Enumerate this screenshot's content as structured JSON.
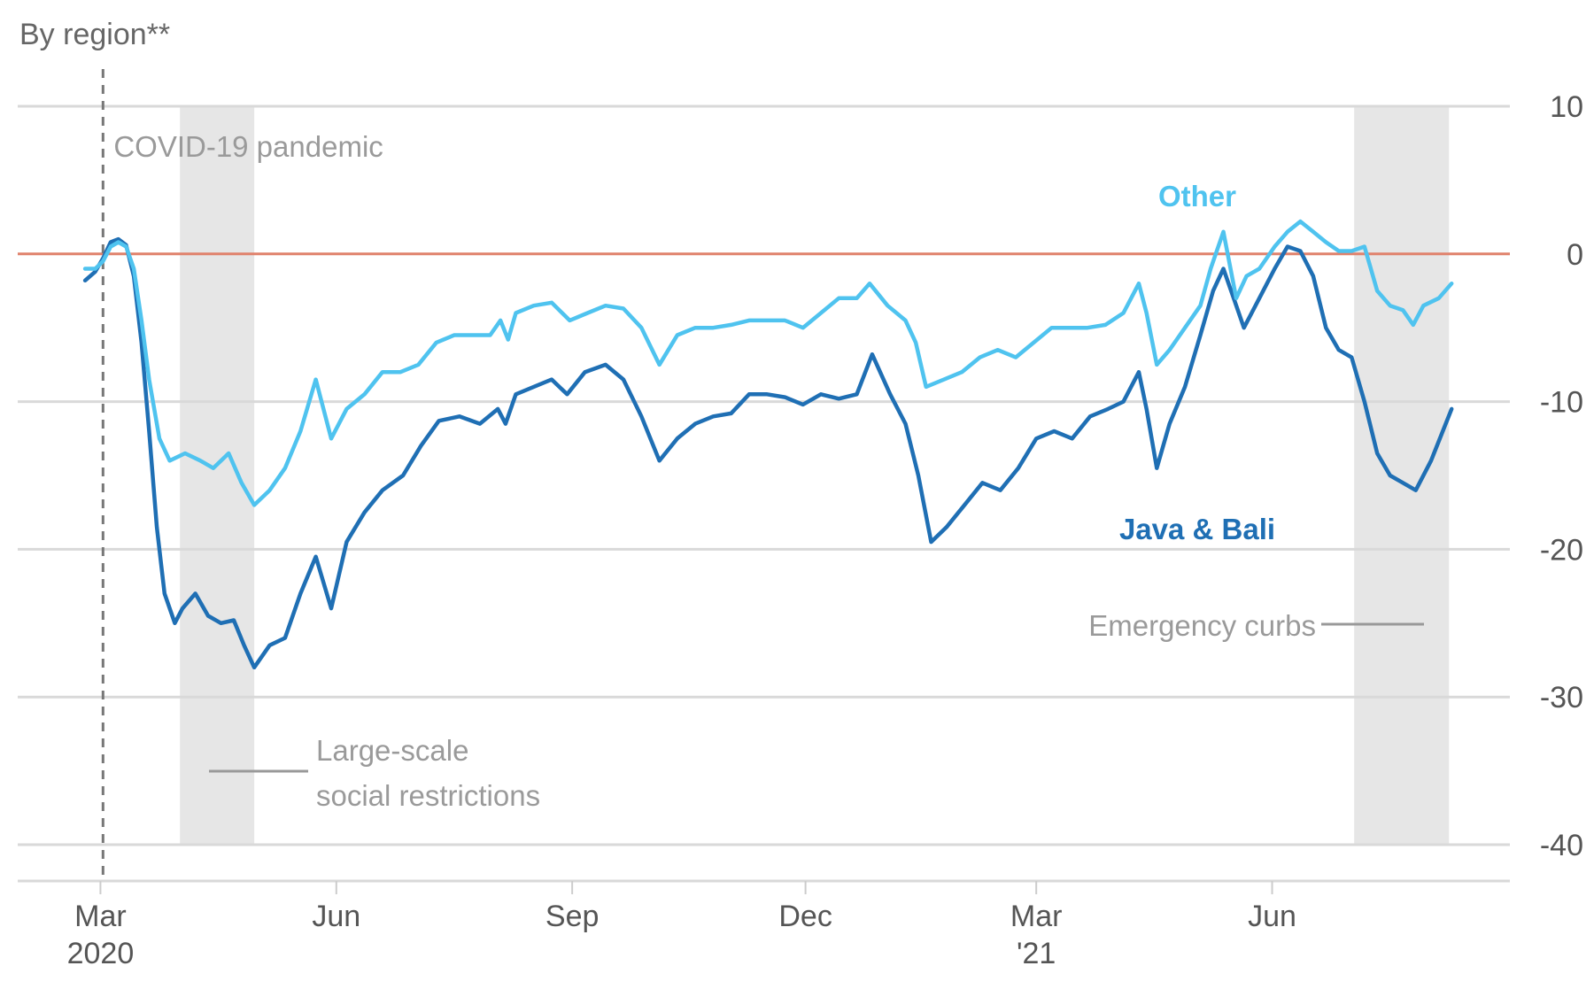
{
  "colors": {
    "java_bali": "#1f6fb4",
    "other": "#4fc3ef",
    "zero_line": "#e0826c",
    "shade": "#e6e6e6",
    "grid": "#d9d9d9"
  },
  "chart_data": {
    "type": "line",
    "subtitle": "By region**",
    "ylim": [
      -40,
      10
    ],
    "yticks": [
      {
        "value": 10,
        "label": "10"
      },
      {
        "value": 0,
        "label": "0"
      },
      {
        "value": -10,
        "label": "-10"
      },
      {
        "value": -20,
        "label": "-20"
      },
      {
        "value": -30,
        "label": "-30"
      },
      {
        "value": -40,
        "label": "-40"
      }
    ],
    "xlim": [
      "2020-02-15",
      "2021-08-31"
    ],
    "xticks": [
      {
        "date": "2020-03-01",
        "label": "Mar",
        "label2": "2020"
      },
      {
        "date": "2020-06-01",
        "label": "Jun",
        "label2": ""
      },
      {
        "date": "2020-09-01",
        "label": "Sep",
        "label2": ""
      },
      {
        "date": "2020-12-01",
        "label": "Dec",
        "label2": ""
      },
      {
        "date": "2021-03-01",
        "label": "Mar",
        "label2": "'21"
      },
      {
        "date": "2021-06-01",
        "label": "Jun",
        "label2": ""
      }
    ],
    "grid": true,
    "reference_line": {
      "value": 0
    },
    "event_line": {
      "date": "2020-03-02",
      "label": "COVID-19 pandemic"
    },
    "shaded_periods": [
      {
        "start": "2020-04-01",
        "end": "2020-04-30",
        "label": [
          "Large-scale",
          "social restrictions"
        ]
      },
      {
        "start": "2021-07-03",
        "end": "2021-08-09",
        "label": [
          "Emergency curbs"
        ]
      }
    ],
    "series": [
      {
        "name": "Java & Bali",
        "color_key": "java_bali",
        "points": [
          [
            "2020-02-24",
            -1.8
          ],
          [
            "2020-02-28",
            -1.2
          ],
          [
            "2020-03-02",
            -0.3
          ],
          [
            "2020-03-05",
            0.8
          ],
          [
            "2020-03-08",
            1.0
          ],
          [
            "2020-03-11",
            0.6
          ],
          [
            "2020-03-14",
            -1.5
          ],
          [
            "2020-03-17",
            -6.0
          ],
          [
            "2020-03-20",
            -12.0
          ],
          [
            "2020-03-23",
            -18.5
          ],
          [
            "2020-03-26",
            -23.0
          ],
          [
            "2020-03-30",
            -25.0
          ],
          [
            "2020-04-02",
            -24.0
          ],
          [
            "2020-04-07",
            -23.0
          ],
          [
            "2020-04-12",
            -24.5
          ],
          [
            "2020-04-17",
            -25.0
          ],
          [
            "2020-04-22",
            -24.8
          ],
          [
            "2020-04-26",
            -26.5
          ],
          [
            "2020-04-30",
            -28.0
          ],
          [
            "2020-05-06",
            -26.5
          ],
          [
            "2020-05-12",
            -26.0
          ],
          [
            "2020-05-18",
            -23.0
          ],
          [
            "2020-05-24",
            -20.5
          ],
          [
            "2020-05-30",
            -24.0
          ],
          [
            "2020-06-05",
            -19.5
          ],
          [
            "2020-06-12",
            -17.5
          ],
          [
            "2020-06-19",
            -16.0
          ],
          [
            "2020-06-27",
            -15.0
          ],
          [
            "2020-07-04",
            -13.0
          ],
          [
            "2020-07-11",
            -11.3
          ],
          [
            "2020-07-19",
            -11.0
          ],
          [
            "2020-07-27",
            -11.5
          ],
          [
            "2020-08-03",
            -10.5
          ],
          [
            "2020-08-06",
            -11.5
          ],
          [
            "2020-08-10",
            -9.5
          ],
          [
            "2020-08-17",
            -9.0
          ],
          [
            "2020-08-24",
            -8.5
          ],
          [
            "2020-08-30",
            -9.5
          ],
          [
            "2020-09-06",
            -8.0
          ],
          [
            "2020-09-14",
            -7.5
          ],
          [
            "2020-09-21",
            -8.5
          ],
          [
            "2020-09-28",
            -11.0
          ],
          [
            "2020-10-05",
            -14.0
          ],
          [
            "2020-10-12",
            -12.5
          ],
          [
            "2020-10-19",
            -11.5
          ],
          [
            "2020-10-26",
            -11.0
          ],
          [
            "2020-11-02",
            -10.8
          ],
          [
            "2020-11-09",
            -9.5
          ],
          [
            "2020-11-16",
            -9.5
          ],
          [
            "2020-11-23",
            -9.7
          ],
          [
            "2020-11-30",
            -10.2
          ],
          [
            "2020-12-07",
            -9.5
          ],
          [
            "2020-12-14",
            -9.8
          ],
          [
            "2020-12-21",
            -9.5
          ],
          [
            "2020-12-27",
            -6.8
          ],
          [
            "2021-01-03",
            -9.5
          ],
          [
            "2021-01-09",
            -11.5
          ],
          [
            "2021-01-14",
            -15.0
          ],
          [
            "2021-01-19",
            -19.5
          ],
          [
            "2021-01-25",
            -18.5
          ],
          [
            "2021-02-01",
            -17.0
          ],
          [
            "2021-02-08",
            -15.5
          ],
          [
            "2021-02-15",
            -16.0
          ],
          [
            "2021-02-22",
            -14.5
          ],
          [
            "2021-03-01",
            -12.5
          ],
          [
            "2021-03-08",
            -12.0
          ],
          [
            "2021-03-15",
            -12.5
          ],
          [
            "2021-03-22",
            -11.0
          ],
          [
            "2021-03-29",
            -10.5
          ],
          [
            "2021-04-04",
            -10.0
          ],
          [
            "2021-04-10",
            -8.0
          ],
          [
            "2021-04-13",
            -10.5
          ],
          [
            "2021-04-17",
            -14.5
          ],
          [
            "2021-04-22",
            -11.5
          ],
          [
            "2021-04-28",
            -9.0
          ],
          [
            "2021-05-04",
            -5.5
          ],
          [
            "2021-05-09",
            -2.5
          ],
          [
            "2021-05-13",
            -1.0
          ],
          [
            "2021-05-17",
            -3.0
          ],
          [
            "2021-05-21",
            -5.0
          ],
          [
            "2021-05-27",
            -3.0
          ],
          [
            "2021-06-02",
            -1.0
          ],
          [
            "2021-06-07",
            0.5
          ],
          [
            "2021-06-12",
            0.2
          ],
          [
            "2021-06-17",
            -1.5
          ],
          [
            "2021-06-22",
            -5.0
          ],
          [
            "2021-06-27",
            -6.5
          ],
          [
            "2021-07-02",
            -7.0
          ],
          [
            "2021-07-07",
            -10.0
          ],
          [
            "2021-07-12",
            -13.5
          ],
          [
            "2021-07-17",
            -15.0
          ],
          [
            "2021-07-22",
            -15.5
          ],
          [
            "2021-07-27",
            -16.0
          ],
          [
            "2021-08-02",
            -14.0
          ],
          [
            "2021-08-10",
            -10.5
          ]
        ]
      },
      {
        "name": "Other",
        "color_key": "other",
        "points": [
          [
            "2020-02-24",
            -1.0
          ],
          [
            "2020-02-28",
            -1.0
          ],
          [
            "2020-03-02",
            -0.5
          ],
          [
            "2020-03-05",
            0.5
          ],
          [
            "2020-03-08",
            0.8
          ],
          [
            "2020-03-11",
            0.5
          ],
          [
            "2020-03-14",
            -1.0
          ],
          [
            "2020-03-17",
            -4.5
          ],
          [
            "2020-03-20",
            -8.5
          ],
          [
            "2020-03-24",
            -12.5
          ],
          [
            "2020-03-28",
            -14.0
          ],
          [
            "2020-04-03",
            -13.5
          ],
          [
            "2020-04-09",
            -14.0
          ],
          [
            "2020-04-14",
            -14.5
          ],
          [
            "2020-04-20",
            -13.5
          ],
          [
            "2020-04-25",
            -15.5
          ],
          [
            "2020-04-30",
            -17.0
          ],
          [
            "2020-05-06",
            -16.0
          ],
          [
            "2020-05-12",
            -14.5
          ],
          [
            "2020-05-18",
            -12.0
          ],
          [
            "2020-05-24",
            -8.5
          ],
          [
            "2020-05-30",
            -12.5
          ],
          [
            "2020-06-05",
            -10.5
          ],
          [
            "2020-06-12",
            -9.5
          ],
          [
            "2020-06-19",
            -8.0
          ],
          [
            "2020-06-26",
            -8.0
          ],
          [
            "2020-07-03",
            -7.5
          ],
          [
            "2020-07-10",
            -6.0
          ],
          [
            "2020-07-17",
            -5.5
          ],
          [
            "2020-07-24",
            -5.5
          ],
          [
            "2020-07-31",
            -5.5
          ],
          [
            "2020-08-04",
            -4.5
          ],
          [
            "2020-08-07",
            -5.8
          ],
          [
            "2020-08-10",
            -4.0
          ],
          [
            "2020-08-17",
            -3.5
          ],
          [
            "2020-08-24",
            -3.3
          ],
          [
            "2020-08-31",
            -4.5
          ],
          [
            "2020-09-07",
            -4.0
          ],
          [
            "2020-09-14",
            -3.5
          ],
          [
            "2020-09-21",
            -3.7
          ],
          [
            "2020-09-28",
            -5.0
          ],
          [
            "2020-10-05",
            -7.5
          ],
          [
            "2020-10-12",
            -5.5
          ],
          [
            "2020-10-19",
            -5.0
          ],
          [
            "2020-10-26",
            -5.0
          ],
          [
            "2020-11-02",
            -4.8
          ],
          [
            "2020-11-09",
            -4.5
          ],
          [
            "2020-11-16",
            -4.5
          ],
          [
            "2020-11-23",
            -4.5
          ],
          [
            "2020-11-30",
            -5.0
          ],
          [
            "2020-12-07",
            -4.0
          ],
          [
            "2020-12-14",
            -3.0
          ],
          [
            "2020-12-21",
            -3.0
          ],
          [
            "2020-12-26",
            -2.0
          ],
          [
            "2021-01-02",
            -3.5
          ],
          [
            "2021-01-09",
            -4.5
          ],
          [
            "2021-01-13",
            -6.0
          ],
          [
            "2021-01-17",
            -9.0
          ],
          [
            "2021-01-24",
            -8.5
          ],
          [
            "2021-01-31",
            -8.0
          ],
          [
            "2021-02-07",
            -7.0
          ],
          [
            "2021-02-14",
            -6.5
          ],
          [
            "2021-02-21",
            -7.0
          ],
          [
            "2021-02-28",
            -6.0
          ],
          [
            "2021-03-07",
            -5.0
          ],
          [
            "2021-03-14",
            -5.0
          ],
          [
            "2021-03-21",
            -5.0
          ],
          [
            "2021-03-28",
            -4.8
          ],
          [
            "2021-04-04",
            -4.0
          ],
          [
            "2021-04-10",
            -2.0
          ],
          [
            "2021-04-13",
            -4.0
          ],
          [
            "2021-04-17",
            -7.5
          ],
          [
            "2021-04-22",
            -6.5
          ],
          [
            "2021-04-28",
            -5.0
          ],
          [
            "2021-05-04",
            -3.5
          ],
          [
            "2021-05-08",
            -1.0
          ],
          [
            "2021-05-13",
            1.5
          ],
          [
            "2021-05-18",
            -3.0
          ],
          [
            "2021-05-22",
            -1.5
          ],
          [
            "2021-05-27",
            -1.0
          ],
          [
            "2021-06-02",
            0.5
          ],
          [
            "2021-06-07",
            1.5
          ],
          [
            "2021-06-12",
            2.2
          ],
          [
            "2021-06-17",
            1.5
          ],
          [
            "2021-06-22",
            0.8
          ],
          [
            "2021-06-27",
            0.2
          ],
          [
            "2021-07-02",
            0.2
          ],
          [
            "2021-07-07",
            0.5
          ],
          [
            "2021-07-12",
            -2.5
          ],
          [
            "2021-07-17",
            -3.5
          ],
          [
            "2021-07-22",
            -3.8
          ],
          [
            "2021-07-26",
            -4.8
          ],
          [
            "2021-07-30",
            -3.5
          ],
          [
            "2021-08-05",
            -3.0
          ],
          [
            "2021-08-10",
            -2.0
          ]
        ]
      }
    ]
  }
}
